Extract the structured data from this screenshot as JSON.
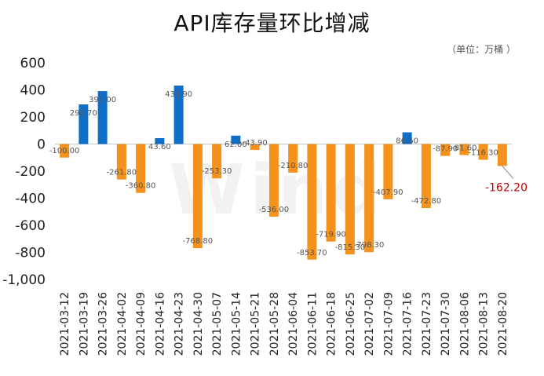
{
  "chart_data": {
    "type": "bar",
    "title": "API库存量环比增减",
    "unit_label": "（单位：万桶 ）",
    "watermark": "Wind",
    "categories": [
      "2021-03-12",
      "2021-03-19",
      "2021-03-26",
      "2021-04-02",
      "2021-04-09",
      "2021-04-16",
      "2021-04-23",
      "2021-04-30",
      "2021-05-07",
      "2021-05-14",
      "2021-05-21",
      "2021-05-28",
      "2021-06-04",
      "2021-06-11",
      "2021-06-18",
      "2021-06-25",
      "2021-07-02",
      "2021-07-09",
      "2021-07-16",
      "2021-07-23",
      "2021-07-30",
      "2021-08-06",
      "2021-08-13",
      "2021-08-20"
    ],
    "values": [
      -100.0,
      292.7,
      391.0,
      -261.8,
      -360.8,
      43.6,
      431.9,
      -768.8,
      -253.3,
      62.0,
      -43.9,
      -536.0,
      -210.8,
      -853.7,
      -719.9,
      -815.3,
      -798.3,
      -407.9,
      86.6,
      -472.8,
      -87.9,
      -81.6,
      -116.3,
      -162.2
    ],
    "data_labels": [
      "-100.00",
      "292.70",
      "391.00",
      "-261.80",
      "-360.80",
      "43.60",
      "431.90",
      "-768.80",
      "-253.30",
      "62.00",
      "-43.90",
      "-536.00",
      "-210.80",
      "-853.70",
      "-719.90",
      "-815.30",
      "-798.30",
      "-407.90",
      "86.60",
      "-472.80",
      "-87.90",
      "-81.60",
      "-116.30",
      "-162.20"
    ],
    "last_callout": "-162.20",
    "ylim": [
      -1000,
      600
    ],
    "yticks": [
      600,
      400,
      200,
      0,
      -200,
      -400,
      -600,
      -800,
      -1000
    ],
    "ytick_labels": [
      "600",
      "400",
      "200",
      "0",
      "-200",
      "-400",
      "-600",
      "-800",
      "-1,000"
    ],
    "grid": false,
    "legend": "none",
    "colors": {
      "positive": "#0f6fc6",
      "negative": "#f5921e",
      "callout": "#c00000"
    }
  }
}
